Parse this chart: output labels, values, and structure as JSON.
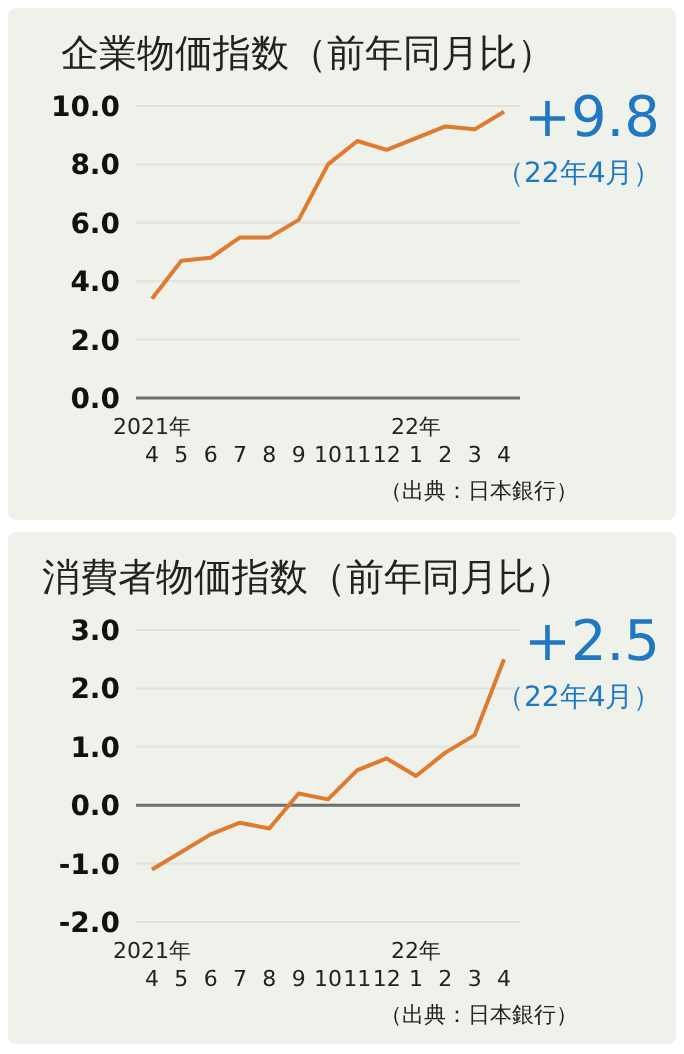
{
  "chart_data": [
    {
      "type": "line",
      "title": "企業物価指数（前年同月比）",
      "categories": [
        "2021年\n4",
        "5",
        "6",
        "7",
        "8",
        "9",
        "10",
        "11",
        "12",
        "22年\n1",
        "2",
        "3",
        "4"
      ],
      "series": [
        {
          "color": "#e07a30",
          "values": [
            3.4,
            4.7,
            4.8,
            5.5,
            5.5,
            6.1,
            8.0,
            8.8,
            8.5,
            8.9,
            9.3,
            9.2,
            9.8
          ]
        }
      ],
      "ylim": [
        0,
        10
      ],
      "yticks": [
        {
          "value": 0,
          "label": "0.0"
        },
        {
          "value": 2,
          "label": "2.0"
        },
        {
          "value": 4,
          "label": "4.0"
        },
        {
          "value": 6,
          "label": "6.0"
        },
        {
          "value": 8,
          "label": "8.0"
        },
        {
          "value": 10,
          "label": "10.0"
        }
      ],
      "grid": "y",
      "marker": "none",
      "legend": false,
      "annotations": [
        "+9.8",
        "（22年4月）",
        "（出典：日本銀行）"
      ]
    },
    {
      "type": "line",
      "title": "消費者物価指数（前年同月比）",
      "categories": [
        "2021年\n4",
        "5",
        "6",
        "7",
        "8",
        "9",
        "10",
        "11",
        "12",
        "22年\n1",
        "2",
        "3",
        "4"
      ],
      "series": [
        {
          "color": "#e07a30",
          "values": [
            -1.1,
            -0.8,
            -0.5,
            -0.3,
            -0.4,
            0.2,
            0.1,
            0.6,
            0.8,
            0.5,
            0.9,
            1.2,
            2.5
          ]
        }
      ],
      "ylim": [
        -2,
        3
      ],
      "yticks": [
        {
          "value": -2,
          "label": "-2.0"
        },
        {
          "value": -1,
          "label": "-1.0"
        },
        {
          "value": 0,
          "label": "0.0"
        },
        {
          "value": 1,
          "label": "1.0"
        },
        {
          "value": 2,
          "label": "2.0"
        },
        {
          "value": 3,
          "label": "3.0"
        }
      ],
      "grid": "y",
      "marker": "none",
      "legend": false,
      "ref_lines": [
        {
          "axis": "y",
          "value": 0,
          "color": "#6e6e6e"
        }
      ],
      "annotations": [
        "+2.5",
        "（22年4月）",
        "（出典：日本銀行）"
      ]
    }
  ]
}
